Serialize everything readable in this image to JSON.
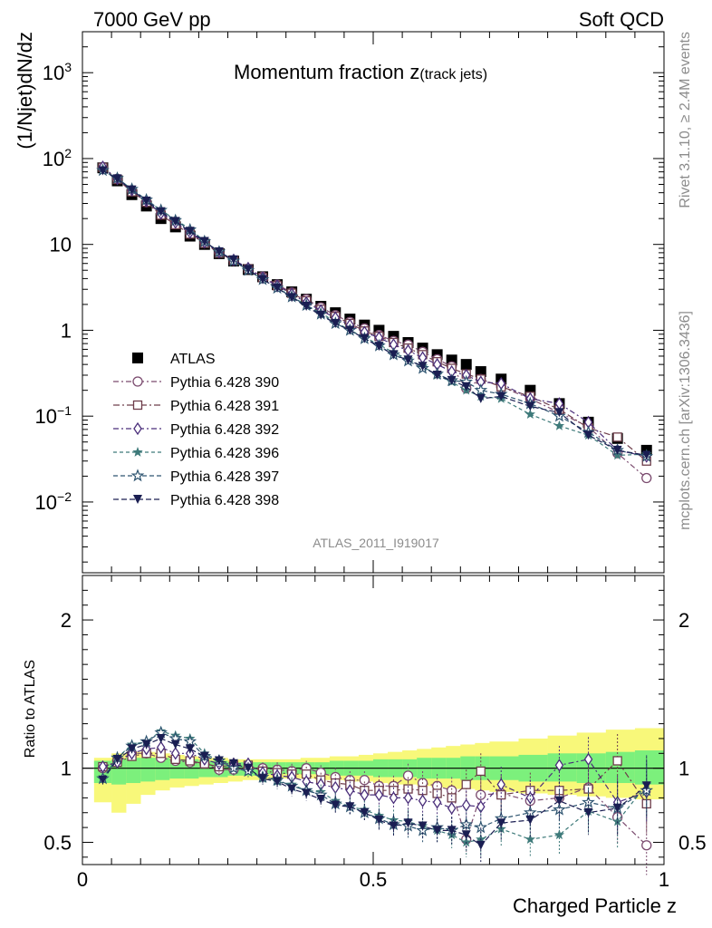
{
  "header": {
    "left": "7000 GeV pp",
    "right": "Soft QCD"
  },
  "side_labels": {
    "rivet": "Rivet 3.1.10, ≥ 2.4M events",
    "mcplots": "mcplots.cern.ch [arXiv:1306.3436]"
  },
  "analysis_id": "ATLAS_2011_I919017",
  "colors": {
    "atlas": "#000000",
    "p390": "#7a4a6e",
    "p391": "#6e3d4a",
    "p392": "#4a2e7a",
    "p396": "#3e7a7a",
    "p397": "#2e5470",
    "p398": "#1a1e52",
    "band_inner": "#7cf07c",
    "band_outer": "#f8f87a"
  },
  "chart_data": [
    {
      "type": "scatter",
      "panel": "main",
      "title": "Momentum fraction z",
      "title_sub": "(track jets)",
      "xlabel": "",
      "ylabel": "(1/Njet)dN/dz",
      "log_y": true,
      "xlim": [
        0,
        1
      ],
      "ylim": [
        0.0015,
        3000
      ],
      "y_ticks": [
        {
          "v": 0.01,
          "base": "10",
          "exp": "−2"
        },
        {
          "v": 0.1,
          "base": "10",
          "exp": "−1"
        },
        {
          "v": 1,
          "base": "1",
          "exp": ""
        },
        {
          "v": 10,
          "base": "10",
          "exp": ""
        },
        {
          "v": 100,
          "base": "10",
          "exp": "2"
        },
        {
          "v": 1000,
          "base": "10",
          "exp": "3"
        }
      ],
      "x": [
        0.035,
        0.06,
        0.085,
        0.11,
        0.135,
        0.16,
        0.185,
        0.21,
        0.235,
        0.26,
        0.285,
        0.31,
        0.335,
        0.36,
        0.385,
        0.41,
        0.435,
        0.46,
        0.485,
        0.51,
        0.535,
        0.56,
        0.585,
        0.61,
        0.635,
        0.66,
        0.685,
        0.72,
        0.77,
        0.82,
        0.87,
        0.92,
        0.97
      ],
      "series": [
        {
          "name": "ATLAS",
          "marker": "square-filled",
          "color_key": "atlas",
          "values": [
            78,
            55,
            38,
            28,
            20,
            16,
            12.5,
            10,
            7.8,
            6.4,
            5.1,
            4.2,
            3.4,
            2.8,
            2.3,
            1.9,
            1.6,
            1.35,
            1.15,
            1.0,
            0.85,
            0.72,
            0.62,
            0.52,
            0.45,
            0.4,
            0.33,
            0.27,
            0.2,
            0.14,
            0.085,
            0.055,
            0.04
          ]
        },
        {
          "name": "Pythia 6.428 390",
          "marker": "circle-open",
          "color_key": "p390",
          "values": [
            78,
            58,
            42,
            31,
            23,
            17.5,
            13.5,
            10.5,
            8,
            6.5,
            5.2,
            4.2,
            3.4,
            2.75,
            2.3,
            1.85,
            1.5,
            1.25,
            1.05,
            0.88,
            0.75,
            0.68,
            0.56,
            0.46,
            0.38,
            0.21,
            0.27,
            0.22,
            0.16,
            0.11,
            0.075,
            0.037,
            0.019
          ]
        },
        {
          "name": "Pythia 6.428 391",
          "marker": "square-open",
          "color_key": "p391",
          "values": [
            79,
            57,
            41,
            31,
            22,
            17,
            13.2,
            10.3,
            7.9,
            6.5,
            5.2,
            4.1,
            3.3,
            2.7,
            2.2,
            1.75,
            1.45,
            1.2,
            0.98,
            0.85,
            0.72,
            0.62,
            0.52,
            0.43,
            0.36,
            0.31,
            0.27,
            0.22,
            0.17,
            0.12,
            0.073,
            0.057,
            0.03
          ]
        },
        {
          "name": "Pythia 6.428 392",
          "marker": "diamond-open",
          "color_key": "p392",
          "values": [
            80,
            58,
            43,
            32,
            23,
            18,
            13.8,
            10.6,
            8.1,
            6.6,
            5.3,
            4.1,
            3.3,
            2.65,
            2.1,
            1.7,
            1.4,
            1.15,
            0.95,
            0.82,
            0.68,
            0.58,
            0.48,
            0.4,
            0.33,
            0.3,
            0.25,
            0.24,
            0.16,
            0.14,
            0.085,
            0.04,
            0.034
          ]
        },
        {
          "name": "Pythia 6.428 396",
          "marker": "star-filled",
          "color_key": "p396",
          "values": [
            72,
            59,
            44,
            33,
            25,
            19.5,
            15,
            11,
            8.2,
            6.4,
            5,
            3.9,
            3.1,
            2.5,
            1.95,
            1.6,
            1.25,
            1.0,
            0.83,
            0.68,
            0.55,
            0.46,
            0.38,
            0.3,
            0.25,
            0.2,
            0.17,
            0.16,
            0.105,
            0.077,
            0.06,
            0.035,
            0.036
          ]
        },
        {
          "name": "Pythia 6.428 397",
          "marker": "star-open",
          "color_key": "p397",
          "values": [
            73,
            59,
            44,
            33,
            25,
            19,
            14.8,
            10.8,
            8.2,
            6.4,
            5,
            3.9,
            3.1,
            2.45,
            1.95,
            1.55,
            1.2,
            1.0,
            0.8,
            0.66,
            0.52,
            0.44,
            0.36,
            0.31,
            0.26,
            0.25,
            0.2,
            0.18,
            0.14,
            0.1,
            0.065,
            0.04,
            0.034
          ]
        },
        {
          "name": "Pythia 6.428 398",
          "marker": "triangle-down-filled",
          "color_key": "p398",
          "values": [
            72,
            58,
            43,
            32,
            24,
            18.5,
            14.2,
            10.8,
            8.2,
            6.6,
            5.1,
            3.9,
            3.1,
            2.4,
            1.9,
            1.5,
            1.2,
            1.0,
            0.8,
            0.65,
            0.52,
            0.45,
            0.38,
            0.3,
            0.26,
            0.22,
            0.16,
            0.17,
            0.13,
            0.11,
            0.06,
            0.04,
            0.035
          ]
        }
      ]
    },
    {
      "type": "scatter",
      "panel": "ratio",
      "title": "",
      "xlabel": "Charged Particle z",
      "ylabel": "Ratio to ATLAS",
      "log_y": false,
      "xlim": [
        0,
        1
      ],
      "ylim": [
        0.35,
        2.3
      ],
      "x_tick_labels": [
        "0",
        "0.5",
        "1"
      ],
      "x_ticks": [
        0,
        0.5,
        1
      ],
      "y_tick_labels": [
        "0.5",
        "1",
        "2"
      ],
      "y_ticks": [
        0.5,
        1,
        2
      ],
      "band_edges": [
        0.02,
        0.05,
        0.075,
        0.1,
        0.125,
        0.15,
        0.175,
        0.2,
        0.225,
        0.25,
        0.275,
        0.3,
        0.325,
        0.35,
        0.375,
        0.4,
        0.425,
        0.45,
        0.475,
        0.5,
        0.525,
        0.55,
        0.575,
        0.6,
        0.625,
        0.65,
        0.675,
        0.7,
        0.75,
        0.8,
        0.85,
        0.9,
        0.95,
        1.0
      ],
      "band_inner": {
        "low": [
          0.9,
          0.89,
          0.9,
          0.91,
          0.92,
          0.93,
          0.93,
          0.94,
          0.94,
          0.95,
          0.95,
          0.96,
          0.96,
          0.96,
          0.96,
          0.96,
          0.95,
          0.95,
          0.95,
          0.94,
          0.94,
          0.94,
          0.93,
          0.93,
          0.93,
          0.92,
          0.92,
          0.92,
          0.91,
          0.91,
          0.9,
          0.9,
          0.89
        ],
        "high": [
          1.05,
          1.06,
          1.07,
          1.07,
          1.07,
          1.06,
          1.06,
          1.05,
          1.05,
          1.04,
          1.04,
          1.04,
          1.04,
          1.04,
          1.04,
          1.04,
          1.05,
          1.05,
          1.05,
          1.06,
          1.06,
          1.06,
          1.07,
          1.07,
          1.07,
          1.08,
          1.08,
          1.08,
          1.09,
          1.1,
          1.1,
          1.11,
          1.12
        ]
      },
      "band_outer": {
        "low": [
          0.77,
          0.7,
          0.76,
          0.82,
          0.85,
          0.87,
          0.88,
          0.89,
          0.9,
          0.91,
          0.92,
          0.92,
          0.93,
          0.93,
          0.93,
          0.92,
          0.92,
          0.91,
          0.91,
          0.9,
          0.89,
          0.89,
          0.88,
          0.87,
          0.86,
          0.86,
          0.85,
          0.84,
          0.83,
          0.82,
          0.81,
          0.8,
          0.79
        ],
        "high": [
          1.07,
          1.1,
          1.11,
          1.11,
          1.1,
          1.09,
          1.08,
          1.07,
          1.07,
          1.06,
          1.06,
          1.06,
          1.06,
          1.06,
          1.07,
          1.07,
          1.08,
          1.08,
          1.09,
          1.1,
          1.11,
          1.12,
          1.13,
          1.14,
          1.15,
          1.16,
          1.17,
          1.18,
          1.2,
          1.22,
          1.24,
          1.26,
          1.27
        ]
      },
      "series": [
        {
          "name": "Pythia 6.428 390",
          "color_key": "p390",
          "marker": "circle-open",
          "values": [
            1.0,
            1.05,
            1.1,
            1.1,
            1.07,
            1.05,
            1.04,
            1.03,
            0.99,
            0.99,
            1.0,
            1.0,
            0.99,
            0.98,
            1.0,
            0.97,
            0.94,
            0.92,
            0.92,
            0.88,
            0.88,
            0.95,
            0.9,
            0.88,
            0.85,
            0.52,
            0.82,
            0.83,
            0.78,
            0.8,
            0.87,
            0.67,
            0.48
          ],
          "err": [
            0.03,
            0.03,
            0.03,
            0.03,
            0.03,
            0.03,
            0.03,
            0.03,
            0.04,
            0.04,
            0.04,
            0.04,
            0.05,
            0.05,
            0.05,
            0.05,
            0.06,
            0.06,
            0.06,
            0.07,
            0.07,
            0.08,
            0.08,
            0.08,
            0.09,
            0.1,
            0.12,
            0.12,
            0.12,
            0.13,
            0.15,
            0.18,
            0.2
          ]
        },
        {
          "name": "Pythia 6.428 391",
          "color_key": "p391",
          "marker": "square-open",
          "values": [
            1.01,
            1.04,
            1.08,
            1.1,
            1.1,
            1.06,
            1.05,
            1.03,
            1.01,
            1.02,
            1.02,
            0.98,
            0.97,
            0.96,
            0.96,
            0.92,
            0.9,
            0.89,
            0.85,
            0.85,
            0.85,
            0.86,
            0.85,
            0.83,
            0.8,
            0.89,
            0.98,
            0.82,
            0.85,
            0.85,
            0.86,
            1.05,
            0.76
          ],
          "err": [
            0.03,
            0.03,
            0.03,
            0.03,
            0.03,
            0.03,
            0.03,
            0.03,
            0.04,
            0.04,
            0.04,
            0.04,
            0.05,
            0.05,
            0.05,
            0.05,
            0.06,
            0.06,
            0.06,
            0.07,
            0.07,
            0.08,
            0.08,
            0.08,
            0.09,
            0.1,
            0.12,
            0.12,
            0.12,
            0.13,
            0.15,
            0.18,
            0.2
          ]
        },
        {
          "name": "Pythia 6.428 392",
          "color_key": "p392",
          "marker": "diamond-open",
          "values": [
            1.01,
            1.04,
            1.1,
            1.13,
            1.14,
            1.1,
            1.1,
            1.06,
            1.03,
            1.03,
            1.03,
            0.97,
            0.95,
            0.94,
            0.91,
            0.89,
            0.87,
            0.85,
            0.82,
            0.82,
            0.8,
            0.8,
            0.78,
            0.77,
            0.73,
            0.75,
            0.74,
            0.89,
            0.8,
            1.02,
            1.06,
            0.77,
            0.84
          ],
          "err": [
            0.03,
            0.03,
            0.03,
            0.03,
            0.03,
            0.03,
            0.03,
            0.03,
            0.04,
            0.04,
            0.04,
            0.04,
            0.05,
            0.05,
            0.05,
            0.05,
            0.06,
            0.06,
            0.06,
            0.07,
            0.07,
            0.08,
            0.08,
            0.08,
            0.09,
            0.1,
            0.12,
            0.12,
            0.12,
            0.13,
            0.15,
            0.18,
            0.2
          ]
        },
        {
          "name": "Pythia 6.428 396",
          "color_key": "p396",
          "marker": "star-filled",
          "values": [
            0.93,
            1.07,
            1.16,
            1.18,
            1.25,
            1.22,
            1.2,
            1.1,
            1.05,
            1.0,
            0.98,
            0.93,
            0.91,
            0.89,
            0.85,
            0.84,
            0.78,
            0.74,
            0.72,
            0.68,
            0.65,
            0.64,
            0.61,
            0.58,
            0.55,
            0.5,
            0.52,
            0.59,
            0.52,
            0.55,
            0.71,
            0.64,
            0.89
          ],
          "err": [
            0.03,
            0.03,
            0.03,
            0.03,
            0.03,
            0.03,
            0.03,
            0.03,
            0.04,
            0.04,
            0.04,
            0.04,
            0.05,
            0.05,
            0.05,
            0.05,
            0.06,
            0.06,
            0.06,
            0.07,
            0.07,
            0.08,
            0.08,
            0.08,
            0.09,
            0.1,
            0.12,
            0.12,
            0.12,
            0.13,
            0.15,
            0.18,
            0.2
          ]
        },
        {
          "name": "Pythia 6.428 397",
          "color_key": "p397",
          "marker": "star-open",
          "values": [
            0.93,
            1.07,
            1.15,
            1.18,
            1.24,
            1.2,
            1.18,
            1.08,
            1.05,
            1.0,
            0.98,
            0.94,
            0.92,
            0.88,
            0.85,
            0.82,
            0.76,
            0.74,
            0.7,
            0.66,
            0.62,
            0.61,
            0.58,
            0.6,
            0.58,
            0.62,
            0.6,
            0.66,
            0.7,
            0.72,
            0.77,
            0.73,
            0.85
          ],
          "err": [
            0.03,
            0.03,
            0.03,
            0.03,
            0.03,
            0.03,
            0.03,
            0.03,
            0.04,
            0.04,
            0.04,
            0.04,
            0.05,
            0.05,
            0.05,
            0.05,
            0.06,
            0.06,
            0.06,
            0.07,
            0.07,
            0.08,
            0.08,
            0.08,
            0.09,
            0.1,
            0.12,
            0.12,
            0.12,
            0.13,
            0.15,
            0.18,
            0.2
          ]
        },
        {
          "name": "Pythia 6.428 398",
          "color_key": "p398",
          "marker": "triangle-down-filled",
          "values": [
            0.92,
            1.06,
            1.13,
            1.16,
            1.2,
            1.16,
            1.13,
            1.08,
            1.05,
            1.03,
            1.0,
            0.93,
            0.91,
            0.86,
            0.83,
            0.79,
            0.75,
            0.74,
            0.7,
            0.65,
            0.61,
            0.63,
            0.61,
            0.58,
            0.58,
            0.55,
            0.48,
            0.63,
            0.65,
            0.78,
            0.7,
            0.73,
            0.88
          ],
          "err": [
            0.03,
            0.03,
            0.03,
            0.03,
            0.03,
            0.03,
            0.03,
            0.03,
            0.04,
            0.04,
            0.04,
            0.04,
            0.05,
            0.05,
            0.05,
            0.05,
            0.06,
            0.06,
            0.06,
            0.07,
            0.07,
            0.08,
            0.08,
            0.08,
            0.09,
            0.1,
            0.12,
            0.12,
            0.12,
            0.13,
            0.15,
            0.18,
            0.2
          ]
        }
      ]
    }
  ]
}
